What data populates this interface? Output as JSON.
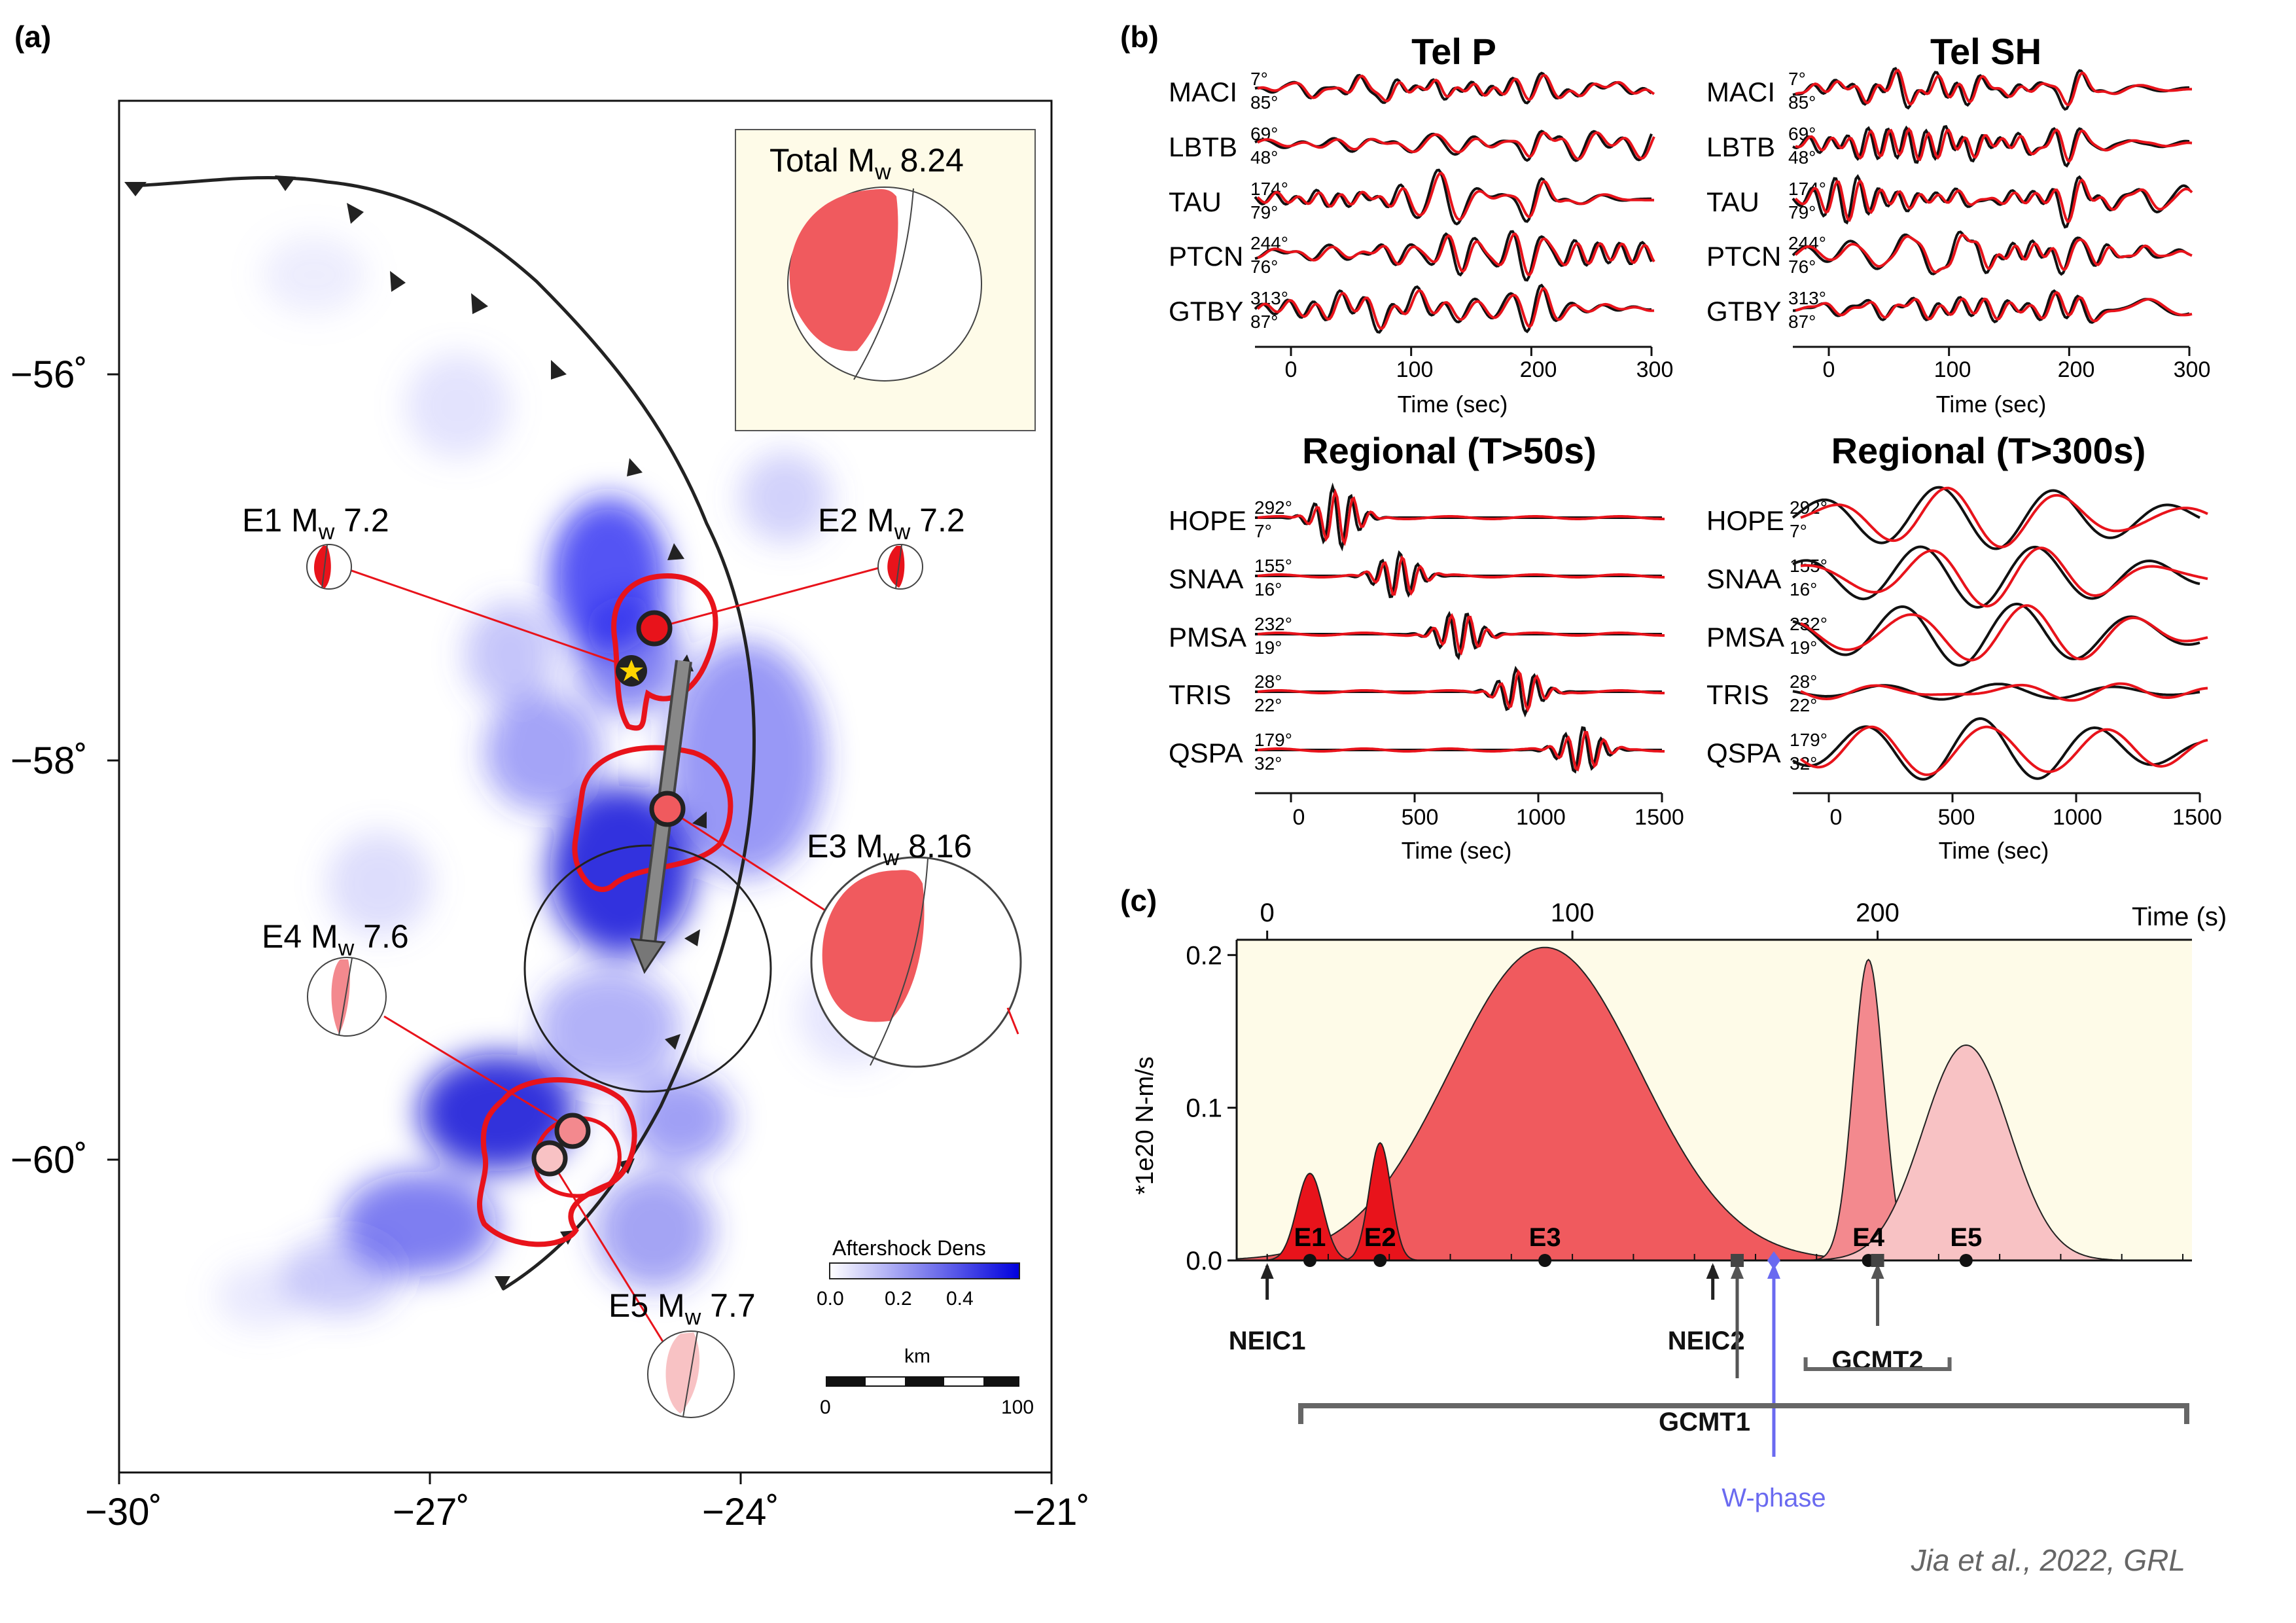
{
  "panels": {
    "a": "(a)",
    "b": "(b)",
    "c": "(c)"
  },
  "credit": "Jia et al., 2022, GRL",
  "map": {
    "x_ticks": [
      "−30˚",
      "−27˚",
      "−24˚",
      "−21˚"
    ],
    "y_ticks": [
      "−56˚",
      "−58˚",
      "−60˚"
    ],
    "total": {
      "text": "Total M",
      "sub": "w",
      "mag": " 8.24"
    },
    "events": [
      {
        "id": "E1",
        "label": "E1 M",
        "sub": "w",
        "mag": " 7.2",
        "color": "#e8131b"
      },
      {
        "id": "E2",
        "label": "E2 M",
        "sub": "w",
        "mag": " 7.2",
        "color": "#e8131b"
      },
      {
        "id": "E3",
        "label": "E3 M",
        "sub": "w",
        "mag": " 8.16",
        "color": "#f05a5e"
      },
      {
        "id": "E4",
        "label": "E4 M",
        "sub": "w",
        "mag": " 7.6",
        "color": "#f3898e"
      },
      {
        "id": "E5",
        "label": "E5 M",
        "sub": "w",
        "mag": " 7.7",
        "color": "#f8c2c4"
      }
    ],
    "colorbar": {
      "title": "Aftershock Dens",
      "ticks": [
        "0.0",
        "0.2",
        "0.4"
      ]
    },
    "scalebar": {
      "unit": "km",
      "ticks": [
        "0",
        "100"
      ]
    }
  },
  "waveforms": {
    "blocks": [
      {
        "title": "Tel P",
        "xlabel": "Time (sec)",
        "ticks": [
          "0",
          "100",
          "200",
          "300"
        ],
        "stations": [
          {
            "name": "MACI",
            "az": "7°",
            "dist": "85°"
          },
          {
            "name": "LBTB",
            "az": "69°",
            "dist": "48°"
          },
          {
            "name": "TAU",
            "az": "174°",
            "dist": "79°"
          },
          {
            "name": "PTCN",
            "az": "244°",
            "dist": "76°"
          },
          {
            "name": "GTBY",
            "az": "313°",
            "dist": "87°"
          }
        ]
      },
      {
        "title": "Tel SH",
        "xlabel": "Time (sec)",
        "ticks": [
          "0",
          "100",
          "200",
          "300"
        ],
        "stations": [
          {
            "name": "MACI",
            "az": "7°",
            "dist": "85°"
          },
          {
            "name": "LBTB",
            "az": "69°",
            "dist": "48°"
          },
          {
            "name": "TAU",
            "az": "174°",
            "dist": "79°"
          },
          {
            "name": "PTCN",
            "az": "244°",
            "dist": "76°"
          },
          {
            "name": "GTBY",
            "az": "313°",
            "dist": "87°"
          }
        ]
      },
      {
        "title": "Regional (T>50s)",
        "xlabel": "Time (sec)",
        "ticks": [
          "0",
          "500",
          "1000",
          "1500"
        ],
        "stations": [
          {
            "name": "HOPE",
            "az": "292°",
            "dist": "7°"
          },
          {
            "name": "SNAA",
            "az": "155°",
            "dist": "16°"
          },
          {
            "name": "PMSA",
            "az": "232°",
            "dist": "19°"
          },
          {
            "name": "TRIS",
            "az": "28°",
            "dist": "22°"
          },
          {
            "name": "QSPA",
            "az": "179°",
            "dist": "32°"
          }
        ]
      },
      {
        "title": "Regional (T>300s)",
        "xlabel": "Time (sec)",
        "ticks": [
          "0",
          "500",
          "1000",
          "1500"
        ],
        "stations": [
          {
            "name": "HOPE",
            "az": "292°",
            "dist": "7°"
          },
          {
            "name": "SNAA",
            "az": "155°",
            "dist": "16°"
          },
          {
            "name": "PMSA",
            "az": "232°",
            "dist": "19°"
          },
          {
            "name": "TRIS",
            "az": "28°",
            "dist": "22°"
          },
          {
            "name": "QSPA",
            "az": "179°",
            "dist": "32°"
          }
        ]
      }
    ]
  },
  "chart_data": {
    "type": "area",
    "title": "",
    "xlabel": "Time (s)",
    "ylabel": "*1e20 N-m/s",
    "xlim": [
      -10,
      303
    ],
    "ylim": [
      0,
      0.21
    ],
    "x_ticks": [
      "0",
      "100",
      "200"
    ],
    "y_ticks": [
      "0.0",
      "0.1",
      "0.2"
    ],
    "series": [
      {
        "name": "E1",
        "peak_time": 14,
        "peak": 0.057,
        "color": "#e8131b"
      },
      {
        "name": "E2",
        "peak_time": 37,
        "peak": 0.077,
        "color": "#e8131b"
      },
      {
        "name": "E3",
        "peak_time": 91,
        "peak": 0.205,
        "color": "#f05a5e"
      },
      {
        "name": "E4",
        "peak_time": 197,
        "peak": 0.197,
        "color": "#f3898e"
      },
      {
        "name": "E5",
        "peak_time": 229,
        "peak": 0.141,
        "color": "#f8c2c4"
      }
    ],
    "markers": [
      {
        "label": "NEIC1",
        "time": 0
      },
      {
        "label": "NEIC2",
        "time": 146
      },
      {
        "label": "GCMT1",
        "time": 154
      },
      {
        "label": "W-phase",
        "time": 166
      },
      {
        "label": "GCMT2",
        "time": 200
      }
    ],
    "event_labels": [
      "E1",
      "E2",
      "E3",
      "E4",
      "E5"
    ]
  }
}
